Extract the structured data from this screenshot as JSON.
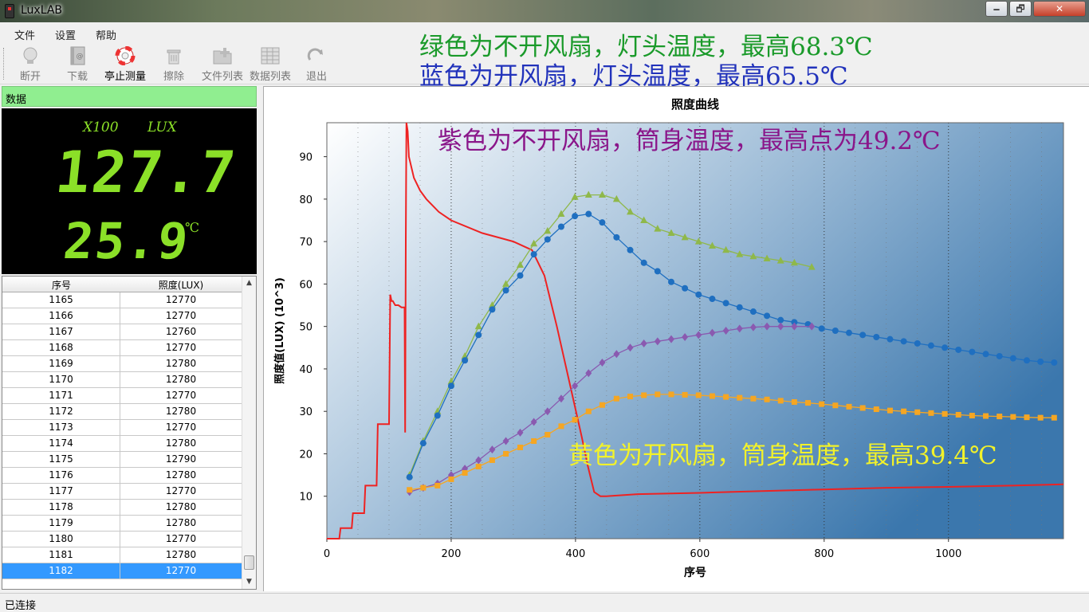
{
  "window": {
    "title": "LuxLAB",
    "min": "🗕",
    "max": "🗗",
    "close": "✕"
  },
  "menu": [
    "文件",
    "设置",
    "帮助"
  ],
  "toolbar": [
    {
      "label": "断开",
      "icon": "bulb-icon",
      "active": false
    },
    {
      "label": "下载",
      "icon": "book-icon",
      "active": false
    },
    {
      "label": "亭止测量",
      "icon": "lifebuoy-icon",
      "active": true
    },
    {
      "label": "擦除",
      "icon": "trash-icon",
      "active": false
    },
    {
      "label": "文件列表",
      "icon": "folder-add-icon",
      "active": false
    },
    {
      "label": "数据列表",
      "icon": "grid-list-icon",
      "active": false
    },
    {
      "label": "退出",
      "icon": "exit-arrow-icon",
      "active": false
    }
  ],
  "annotations": {
    "green": {
      "text": "绿色为不开风扇，灯头温度，最高68.3℃",
      "color": "#1a9a2a"
    },
    "blue": {
      "text": "蓝色为开风扇，灯头温度，最高65.5℃",
      "color": "#2233bb"
    },
    "purple": {
      "text": "紫色为不开风扇，筒身温度，最高点为49.2℃",
      "color": "#8a168a"
    },
    "yellow": {
      "text": "黄色为开风扇，筒身温度，最高39.4℃",
      "color": "#f2f22a"
    }
  },
  "panel": {
    "header": "数据",
    "multiplier": "X100",
    "unit": "LUX",
    "lux_reading": "127.7",
    "temperature_reading": "25.9",
    "temp_unit": "℃"
  },
  "table": {
    "columns": [
      "序号",
      "照度(LUX)"
    ],
    "rows": [
      [
        "1165",
        "12770"
      ],
      [
        "1166",
        "12770"
      ],
      [
        "1167",
        "12760"
      ],
      [
        "1168",
        "12770"
      ],
      [
        "1169",
        "12780"
      ],
      [
        "1170",
        "12780"
      ],
      [
        "1171",
        "12770"
      ],
      [
        "1172",
        "12780"
      ],
      [
        "1173",
        "12770"
      ],
      [
        "1174",
        "12780"
      ],
      [
        "1175",
        "12790"
      ],
      [
        "1176",
        "12780"
      ],
      [
        "1177",
        "12770"
      ],
      [
        "1178",
        "12780"
      ],
      [
        "1179",
        "12780"
      ],
      [
        "1180",
        "12770"
      ],
      [
        "1181",
        "12780"
      ],
      [
        "1182",
        "12770"
      ]
    ],
    "selected_index": 17
  },
  "status": {
    "text": "已连接"
  },
  "chart_data": {
    "type": "line",
    "title": "照度曲线",
    "xlabel": "序号",
    "ylabel": "照度值(LUX)  (10^3)",
    "xlim": [
      0,
      1185
    ],
    "ylim": [
      0,
      98
    ],
    "xticks": [
      0,
      200,
      400,
      600,
      800,
      1000
    ],
    "yticks": [
      10,
      20,
      30,
      40,
      50,
      60,
      70,
      80,
      90
    ],
    "grid": true,
    "series": [
      {
        "color": "#ee2222",
        "marker": "none",
        "step": true,
        "x": [
          0,
          20,
          22,
          40,
          42,
          60,
          62,
          80,
          82,
          100,
          102,
          104,
          106,
          108,
          110,
          115,
          120,
          125,
          126,
          127,
          128,
          130,
          132,
          140,
          150,
          160,
          180,
          200,
          250,
          300,
          330,
          350,
          370,
          390,
          410,
          420,
          430,
          440,
          450,
          500,
          600,
          700,
          800,
          900,
          1000,
          1100,
          1185
        ],
        "y": [
          0,
          0,
          2.5,
          2.5,
          6,
          6,
          12.5,
          12.5,
          27,
          27,
          57.5,
          56,
          56,
          55.5,
          55,
          55,
          54.5,
          54.5,
          25,
          70,
          98,
          96,
          90,
          85,
          82,
          80,
          77,
          75,
          72,
          70,
          68,
          62,
          50,
          37,
          24,
          17,
          11,
          10,
          10,
          10.5,
          10.8,
          11.2,
          11.6,
          12,
          12.2,
          12.5,
          12.8
        ]
      },
      {
        "color": "#8fb84a",
        "marker": "triangle",
        "x": [
          133,
          155,
          178,
          200,
          222,
          244,
          266,
          288,
          311,
          333,
          355,
          377,
          399,
          421,
          443,
          466,
          488,
          510,
          532,
          554,
          576,
          598,
          620,
          642,
          664,
          686,
          708,
          730,
          752,
          780
        ],
        "y": [
          15,
          23,
          30,
          37,
          43,
          50,
          55,
          60,
          64.5,
          69.5,
          72.5,
          76.5,
          80.5,
          81,
          81,
          80,
          77,
          75,
          73,
          72,
          71,
          70,
          69,
          68,
          67,
          66.5,
          66,
          65.5,
          65,
          64
        ]
      },
      {
        "color": "#1f6fc0",
        "marker": "circle",
        "x": [
          133,
          155,
          178,
          200,
          222,
          244,
          266,
          288,
          311,
          333,
          355,
          377,
          399,
          421,
          443,
          466,
          488,
          510,
          532,
          554,
          576,
          598,
          620,
          642,
          664,
          686,
          708,
          730,
          752,
          774,
          796,
          818,
          840,
          862,
          884,
          906,
          928,
          950,
          972,
          994,
          1016,
          1038,
          1060,
          1082,
          1104,
          1126,
          1148,
          1170
        ],
        "y": [
          14.5,
          22.5,
          29,
          36,
          42,
          48,
          54,
          58.5,
          62,
          67,
          70.5,
          73.5,
          76,
          76.5,
          74.5,
          71,
          68,
          65,
          63,
          60.5,
          59,
          57.5,
          56.5,
          55.5,
          54.5,
          53.5,
          52.5,
          51.5,
          51,
          50.5,
          49.5,
          49,
          48.5,
          48,
          47.5,
          47,
          46.5,
          46,
          45.5,
          45,
          44.5,
          44,
          43.5,
          43,
          42.5,
          42,
          41.7,
          41.5
        ]
      },
      {
        "color": "#8a5ab0",
        "marker": "diamond",
        "x": [
          133,
          155,
          178,
          200,
          222,
          244,
          266,
          288,
          311,
          333,
          355,
          377,
          399,
          421,
          443,
          466,
          488,
          510,
          532,
          554,
          576,
          598,
          620,
          642,
          664,
          686,
          708,
          730,
          752,
          780
        ],
        "y": [
          11,
          12,
          13,
          15,
          16.5,
          18.5,
          21,
          23,
          25,
          27.5,
          30,
          33,
          36,
          39,
          41.5,
          43.5,
          45,
          46,
          46.5,
          47,
          47.5,
          48,
          48.5,
          49,
          49.5,
          49.8,
          50,
          50,
          50,
          50
        ]
      },
      {
        "color": "#f5a623",
        "marker": "square",
        "x": [
          133,
          155,
          178,
          200,
          222,
          244,
          266,
          288,
          311,
          333,
          355,
          377,
          399,
          421,
          443,
          466,
          488,
          510,
          532,
          554,
          576,
          598,
          620,
          642,
          664,
          686,
          708,
          730,
          752,
          774,
          796,
          818,
          840,
          862,
          884,
          906,
          928,
          950,
          972,
          994,
          1016,
          1038,
          1060,
          1082,
          1104,
          1126,
          1148,
          1170
        ],
        "y": [
          11.5,
          12,
          12.5,
          14,
          15.5,
          17,
          18.5,
          20,
          21.5,
          23,
          24.5,
          26.5,
          28,
          30,
          31.5,
          33,
          33.5,
          33.8,
          34,
          34,
          33.9,
          33.8,
          33.6,
          33.4,
          33.2,
          33,
          32.8,
          32.5,
          32.2,
          32,
          31.7,
          31.4,
          31.1,
          30.8,
          30.5,
          30.2,
          30,
          29.8,
          29.6,
          29.4,
          29.2,
          29,
          28.9,
          28.8,
          28.7,
          28.6,
          28.5,
          28.5
        ]
      }
    ]
  }
}
